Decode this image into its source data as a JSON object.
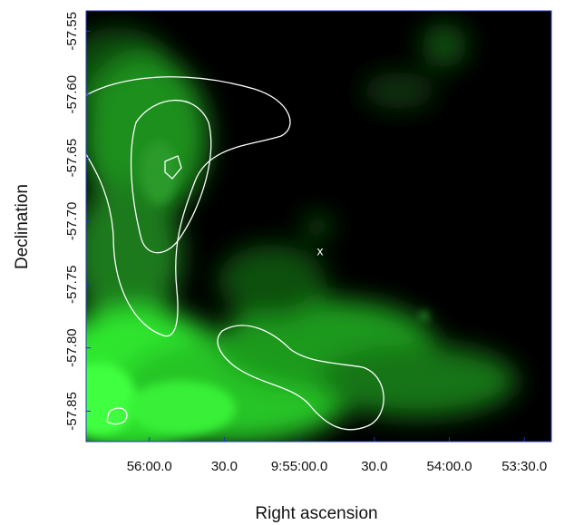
{
  "chart_data": {
    "type": "image",
    "xlabel": "Right ascension",
    "ylabel": "Declination",
    "xlim": [
      35785.3,
      35599.2
    ],
    "xticks": [
      {
        "value": 35760,
        "label": "56:00.0"
      },
      {
        "value": 35730,
        "label": "30.0"
      },
      {
        "value": 35700,
        "label": "9:55:00.0"
      },
      {
        "value": 35670,
        "label": "30.0"
      },
      {
        "value": 35640,
        "label": "54:00.0"
      },
      {
        "value": 35610,
        "label": "53:30.0"
      }
    ],
    "ylim": [
      -57.874,
      -57.534
    ],
    "yticks": [
      -57.55,
      {
        "value": -57.6,
        "label": "-57.60"
      },
      -57.65,
      {
        "value": -57.7,
        "label": "-57.70"
      },
      -57.75,
      {
        "value": -57.8,
        "label": "-57.80"
      },
      -57.85
    ],
    "marker_label": "x",
    "grid": false
  }
}
